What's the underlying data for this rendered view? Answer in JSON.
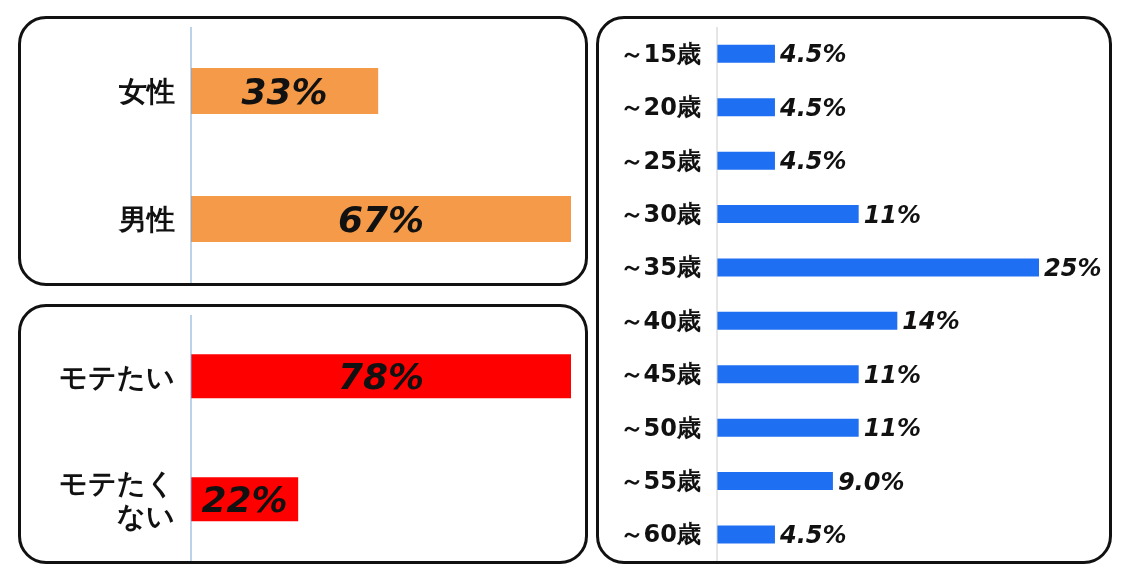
{
  "chart_data": [
    {
      "type": "bar",
      "orientation": "horizontal",
      "categories": [
        "女性",
        "男性"
      ],
      "values": [
        33,
        67
      ],
      "value_labels": [
        "33%",
        "67%"
      ],
      "color": "#f59a48",
      "tick_labels": "y"
    },
    {
      "type": "bar",
      "orientation": "horizontal",
      "categories": [
        "モテたい",
        "モテたくない"
      ],
      "values": [
        78,
        22
      ],
      "value_labels": [
        "78%",
        "22%"
      ],
      "color": "#ff0000",
      "tick_labels": "y"
    },
    {
      "type": "bar",
      "orientation": "horizontal",
      "categories": [
        "～15歳",
        "～20歳",
        "～25歳",
        "～30歳",
        "～35歳",
        "～40歳",
        "～45歳",
        "～50歳",
        "～55歳",
        "～60歳"
      ],
      "values": [
        4.5,
        4.5,
        4.5,
        11,
        25,
        14,
        11,
        11,
        9.0,
        4.5
      ],
      "value_labels": [
        "4.5%",
        "4.5%",
        "4.5%",
        "11%",
        "25%",
        "14%",
        "11%",
        "11%",
        "9.0%",
        "4.5%"
      ],
      "color": "#1f6ff2",
      "tick_labels": "y"
    }
  ]
}
